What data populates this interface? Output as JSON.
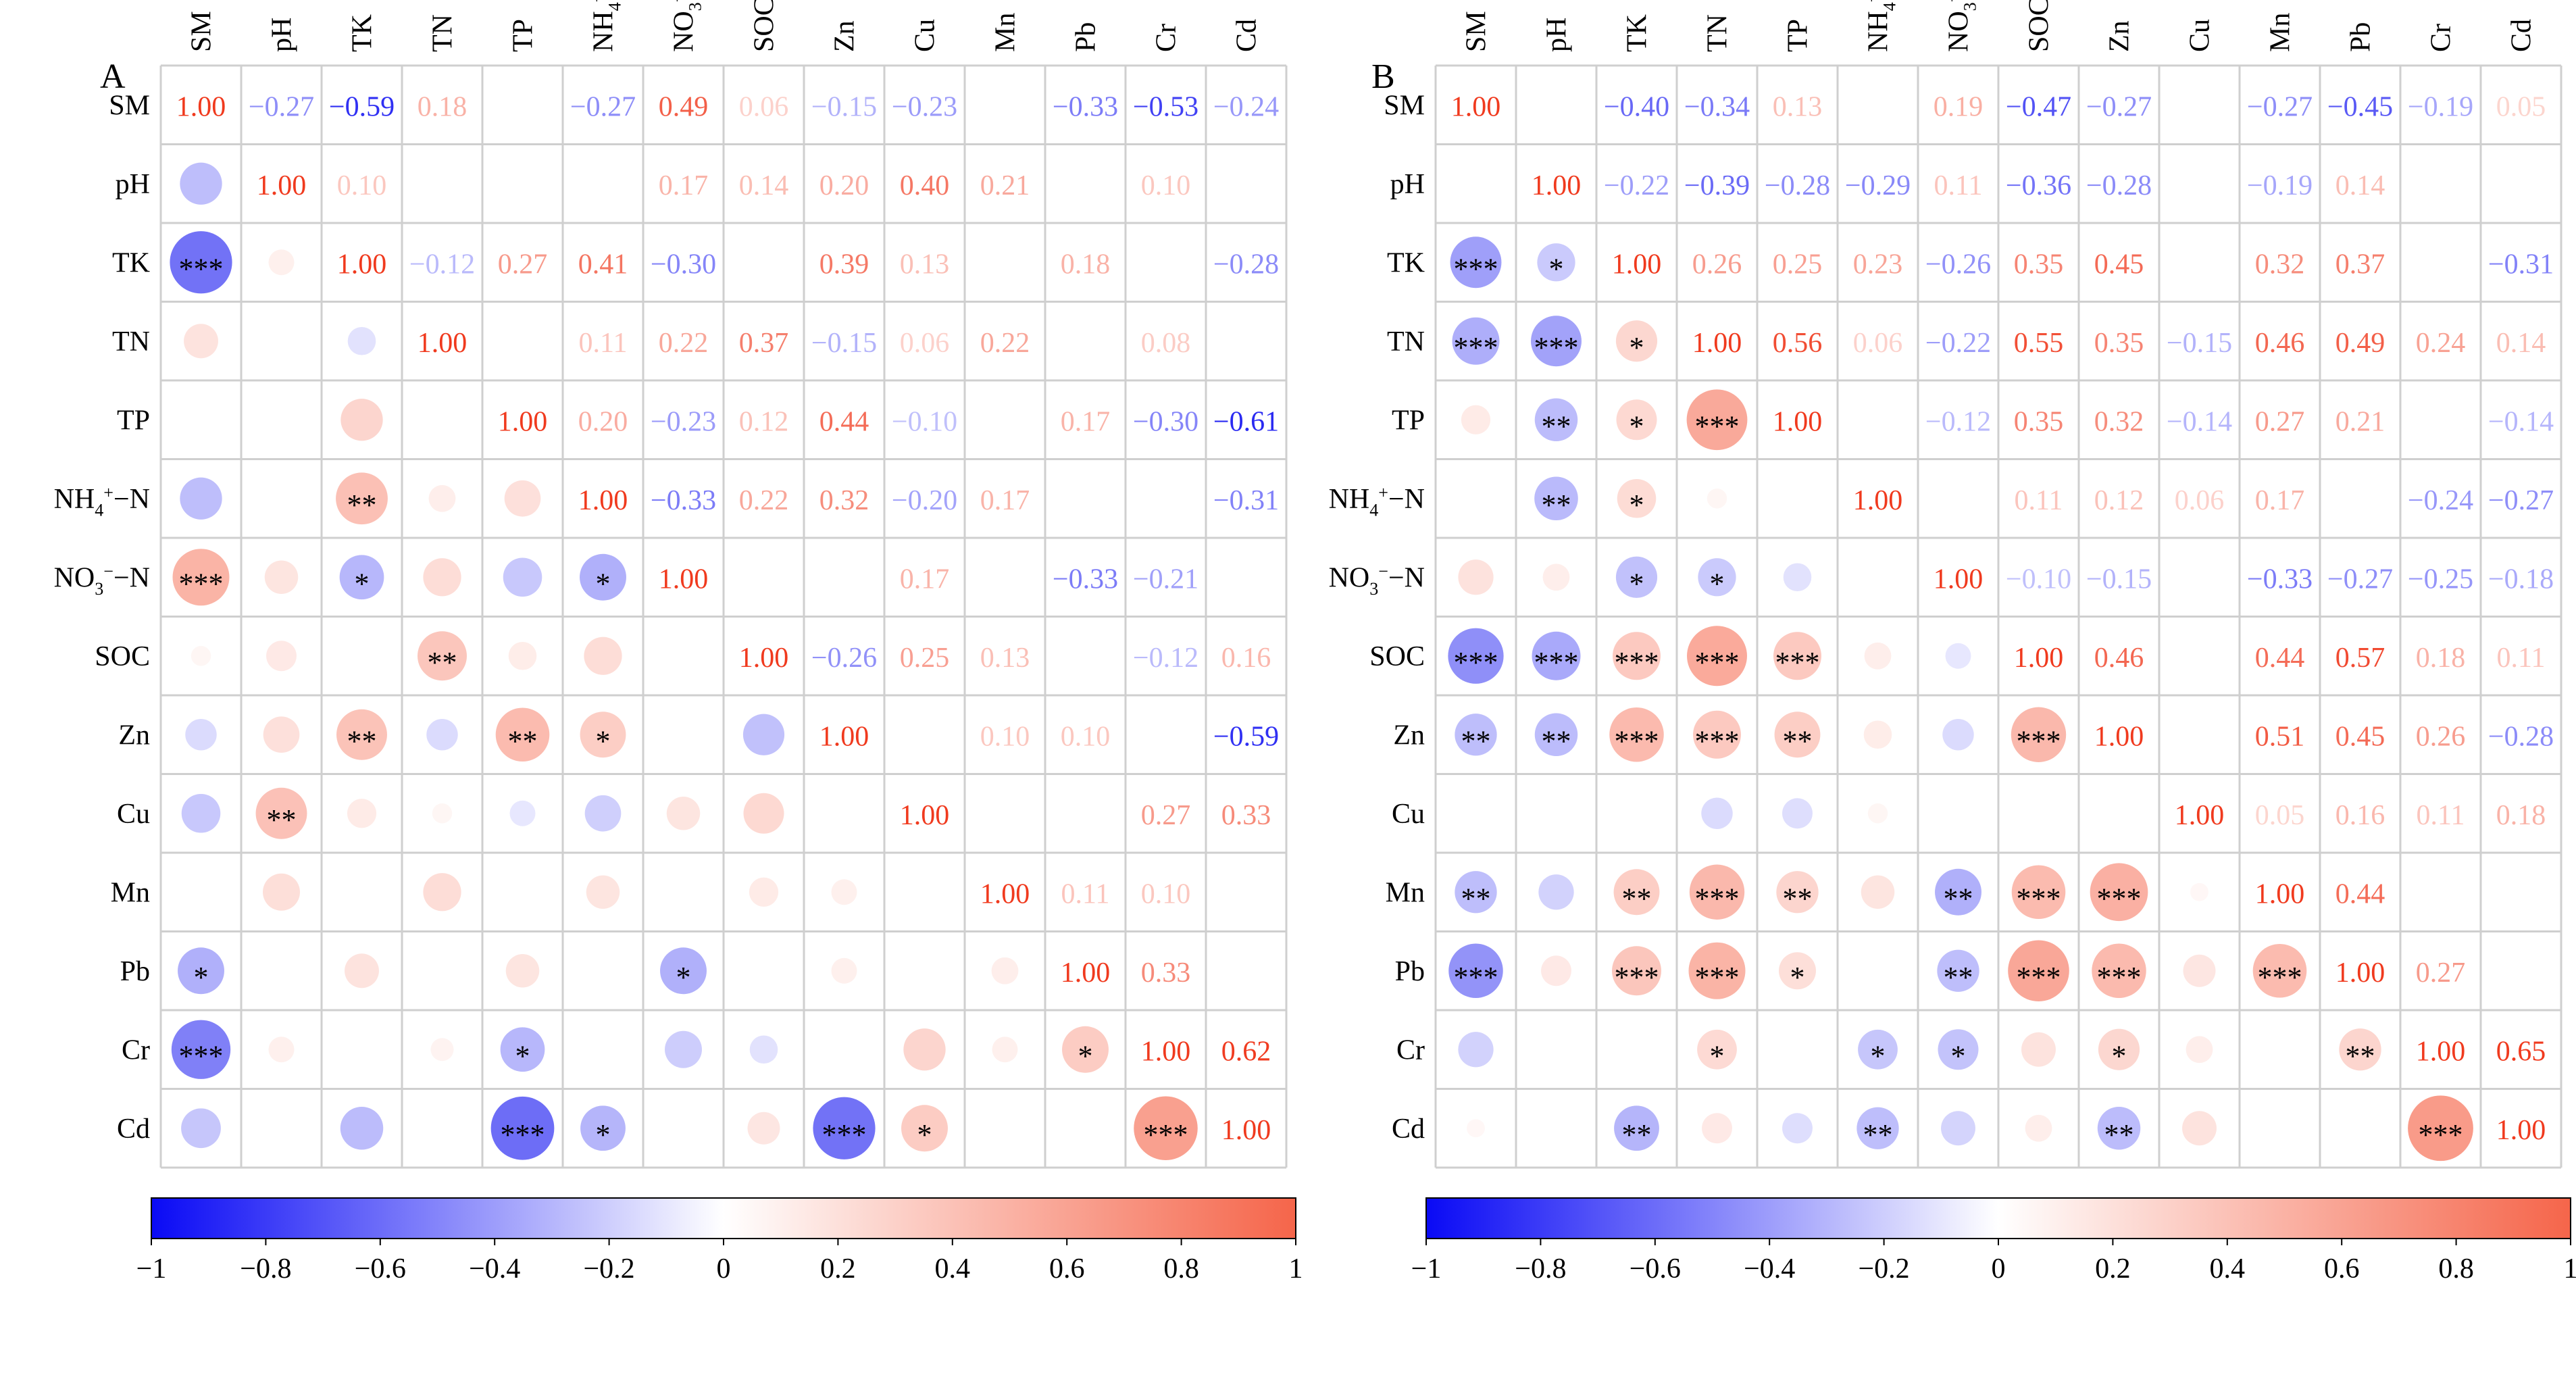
{
  "chart_data": [
    {
      "panel_label": "A",
      "type": "heatmap",
      "subtype": "correlation-matrix (upper: coefficients, lower: circles with significance stars)",
      "variables": [
        "SM",
        "pH",
        "TK",
        "TN",
        "TP",
        "NH4+-N",
        "NO3−-N",
        "SOC",
        "Zn",
        "Cu",
        "Mn",
        "Pb",
        "Cr",
        "Cd"
      ],
      "upper_values": [
        [
          1.0,
          -0.27,
          -0.59,
          0.18,
          null,
          -0.27,
          0.49,
          0.06,
          -0.15,
          -0.23,
          null,
          -0.33,
          -0.53,
          -0.24
        ],
        [
          null,
          1.0,
          0.1,
          null,
          null,
          null,
          0.17,
          0.14,
          0.2,
          0.4,
          0.21,
          null,
          0.1,
          null
        ],
        [
          null,
          null,
          1.0,
          -0.12,
          0.27,
          0.41,
          -0.3,
          null,
          0.39,
          0.13,
          null,
          0.18,
          null,
          -0.28
        ],
        [
          null,
          null,
          null,
          1.0,
          null,
          0.11,
          0.22,
          0.37,
          -0.15,
          0.06,
          0.22,
          null,
          0.08,
          null
        ],
        [
          null,
          null,
          null,
          null,
          1.0,
          0.2,
          -0.23,
          0.12,
          0.44,
          -0.1,
          null,
          0.17,
          -0.3,
          -0.61
        ],
        [
          null,
          null,
          null,
          null,
          null,
          1.0,
          -0.33,
          0.22,
          0.32,
          -0.2,
          0.17,
          null,
          null,
          -0.31
        ],
        [
          null,
          null,
          null,
          null,
          null,
          null,
          1.0,
          null,
          null,
          0.17,
          null,
          -0.33,
          -0.21,
          null
        ],
        [
          null,
          null,
          null,
          null,
          null,
          null,
          null,
          1.0,
          -0.26,
          0.25,
          0.13,
          null,
          -0.12,
          0.16
        ],
        [
          null,
          null,
          null,
          null,
          null,
          null,
          null,
          null,
          1.0,
          null,
          0.1,
          0.1,
          null,
          -0.59
        ],
        [
          null,
          null,
          null,
          null,
          null,
          null,
          null,
          null,
          null,
          1.0,
          null,
          null,
          0.27,
          0.33
        ],
        [
          null,
          null,
          null,
          null,
          null,
          null,
          null,
          null,
          null,
          null,
          1.0,
          0.11,
          0.1,
          null
        ],
        [
          null,
          null,
          null,
          null,
          null,
          null,
          null,
          null,
          null,
          null,
          null,
          1.0,
          0.33,
          null
        ],
        [
          null,
          null,
          null,
          null,
          null,
          null,
          null,
          null,
          null,
          null,
          null,
          null,
          1.0,
          0.62
        ],
        [
          null,
          null,
          null,
          null,
          null,
          null,
          null,
          null,
          null,
          null,
          null,
          null,
          null,
          1.0
        ]
      ],
      "lower_stars": [
        [
          "",
          "",
          "",
          "",
          "",
          "",
          "",
          "",
          "",
          "",
          "",
          "",
          "",
          ""
        ],
        [
          "",
          "",
          "",
          "",
          "",
          "",
          "",
          "",
          "",
          "",
          "",
          "",
          "",
          ""
        ],
        [
          "***",
          "",
          "",
          "",
          "",
          "",
          "",
          "",
          "",
          "",
          "",
          "",
          "",
          ""
        ],
        [
          "",
          "",
          "",
          "",
          "",
          "",
          "",
          "",
          "",
          "",
          "",
          "",
          "",
          ""
        ],
        [
          "",
          "",
          "",
          "",
          "",
          "",
          "",
          "",
          "",
          "",
          "",
          "",
          "",
          ""
        ],
        [
          "",
          "",
          "**",
          "",
          "",
          "",
          "",
          "",
          "",
          "",
          "",
          "",
          "",
          ""
        ],
        [
          "***",
          "",
          "*",
          "",
          "",
          "*",
          "",
          "",
          "",
          "",
          "",
          "",
          "",
          ""
        ],
        [
          "",
          "",
          "",
          "**",
          "",
          "",
          "",
          "",
          "",
          "",
          "",
          "",
          "",
          ""
        ],
        [
          "",
          "",
          "**",
          "",
          "**",
          "*",
          "",
          "",
          "",
          "",
          "",
          "",
          "",
          ""
        ],
        [
          "",
          "**",
          "",
          "",
          "",
          "",
          "",
          "",
          "",
          "",
          "",
          "",
          "",
          ""
        ],
        [
          "",
          "",
          "",
          "",
          "",
          "",
          "",
          "",
          "",
          "",
          "",
          "",
          "",
          ""
        ],
        [
          "*",
          "",
          "",
          "",
          "",
          "",
          "*",
          "",
          "",
          "",
          "",
          "",
          "",
          ""
        ],
        [
          "***",
          "",
          "",
          "",
          "*",
          "",
          "",
          "",
          "",
          "",
          "",
          "*",
          "",
          ""
        ],
        [
          "",
          "",
          "",
          "",
          "***",
          "*",
          "",
          "",
          "***",
          "*",
          "",
          "",
          "***",
          ""
        ]
      ],
      "colorbar": {
        "min": -1,
        "max": 1,
        "ticks": [
          "−1",
          "−0.8",
          "−0.6",
          "−0.4",
          "−0.2",
          "0",
          "0.2",
          "0.4",
          "0.6",
          "0.8",
          "1"
        ],
        "negative_color": "#1010f0",
        "positive_color": "#f5654a"
      }
    },
    {
      "panel_label": "B",
      "type": "heatmap",
      "subtype": "correlation-matrix (upper: coefficients, lower: circles with significance stars)",
      "variables": [
        "SM",
        "pH",
        "TK",
        "TN",
        "TP",
        "NH4+-N",
        "NO3−-N",
        "SOC",
        "Zn",
        "Cu",
        "Mn",
        "Pb",
        "Cr",
        "Cd"
      ],
      "upper_values": [
        [
          1.0,
          null,
          -0.4,
          -0.34,
          0.13,
          null,
          0.19,
          -0.47,
          -0.27,
          null,
          -0.27,
          -0.45,
          -0.19,
          0.05
        ],
        [
          null,
          1.0,
          -0.22,
          -0.39,
          -0.28,
          -0.29,
          0.11,
          -0.36,
          -0.28,
          null,
          -0.19,
          0.14,
          null,
          null
        ],
        [
          null,
          null,
          1.0,
          0.26,
          0.25,
          0.23,
          -0.26,
          0.35,
          0.45,
          null,
          0.32,
          0.37,
          null,
          -0.31
        ],
        [
          null,
          null,
          null,
          1.0,
          0.56,
          0.06,
          -0.22,
          0.55,
          0.35,
          -0.15,
          0.46,
          0.49,
          0.24,
          0.14
        ],
        [
          null,
          null,
          null,
          null,
          1.0,
          null,
          -0.12,
          0.35,
          0.32,
          -0.14,
          0.27,
          0.21,
          null,
          -0.14
        ],
        [
          null,
          null,
          null,
          null,
          null,
          1.0,
          null,
          0.11,
          0.12,
          0.06,
          0.17,
          null,
          -0.24,
          -0.27
        ],
        [
          null,
          null,
          null,
          null,
          null,
          null,
          1.0,
          -0.1,
          -0.15,
          null,
          -0.33,
          -0.27,
          -0.25,
          -0.18
        ],
        [
          null,
          null,
          null,
          null,
          null,
          null,
          null,
          1.0,
          0.46,
          null,
          0.44,
          0.57,
          0.18,
          0.11
        ],
        [
          null,
          null,
          null,
          null,
          null,
          null,
          null,
          null,
          1.0,
          null,
          0.51,
          0.45,
          0.26,
          -0.28
        ],
        [
          null,
          null,
          null,
          null,
          null,
          null,
          null,
          null,
          null,
          1.0,
          0.05,
          0.16,
          0.11,
          0.18
        ],
        [
          null,
          null,
          null,
          null,
          null,
          null,
          null,
          null,
          null,
          null,
          1.0,
          0.44,
          null,
          null
        ],
        [
          null,
          null,
          null,
          null,
          null,
          null,
          null,
          null,
          null,
          null,
          null,
          1.0,
          0.27,
          null
        ],
        [
          null,
          null,
          null,
          null,
          null,
          null,
          null,
          null,
          null,
          null,
          null,
          null,
          1.0,
          0.65
        ],
        [
          null,
          null,
          null,
          null,
          null,
          null,
          null,
          null,
          null,
          null,
          null,
          null,
          null,
          1.0
        ]
      ],
      "lower_stars": [
        [
          "",
          "",
          "",
          "",
          "",
          "",
          "",
          "",
          "",
          "",
          "",
          "",
          "",
          ""
        ],
        [
          "",
          "",
          "",
          "",
          "",
          "",
          "",
          "",
          "",
          "",
          "",
          "",
          "",
          ""
        ],
        [
          "***",
          "*",
          "",
          "",
          "",
          "",
          "",
          "",
          "",
          "",
          "",
          "",
          "",
          ""
        ],
        [
          "***",
          "***",
          "*",
          "",
          "",
          "",
          "",
          "",
          "",
          "",
          "",
          "",
          "",
          ""
        ],
        [
          "",
          "**",
          "*",
          "***",
          "",
          "",
          "",
          "",
          "",
          "",
          "",
          "",
          "",
          ""
        ],
        [
          "",
          "**",
          "*",
          "",
          "",
          "",
          "",
          "",
          "",
          "",
          "",
          "",
          "",
          ""
        ],
        [
          "",
          "",
          "*",
          "*",
          "",
          "",
          "",
          "",
          "",
          "",
          "",
          "",
          "",
          ""
        ],
        [
          "***",
          "***",
          "***",
          "***",
          "***",
          "",
          "",
          "",
          "",
          "",
          "",
          "",
          "",
          ""
        ],
        [
          "**",
          "**",
          "***",
          "***",
          "**",
          "",
          "",
          "***",
          "",
          "",
          "",
          "",
          "",
          ""
        ],
        [
          "",
          "",
          "",
          "",
          "",
          "",
          "",
          "",
          "",
          "",
          "",
          "",
          "",
          ""
        ],
        [
          "**",
          "",
          "**",
          "***",
          "**",
          "",
          "**",
          "***",
          "***",
          "",
          "",
          "",
          "",
          ""
        ],
        [
          "***",
          "",
          "***",
          "***",
          "*",
          "",
          "**",
          "***",
          "***",
          "",
          "***",
          "",
          "",
          ""
        ],
        [
          "",
          "",
          "",
          "*",
          "",
          "*",
          "*",
          "",
          "*",
          "",
          "",
          "**",
          "",
          ""
        ],
        [
          "",
          "",
          "**",
          "",
          "",
          "**",
          "",
          "",
          "**",
          "",
          "",
          "",
          "***",
          ""
        ]
      ],
      "colorbar": {
        "min": -1,
        "max": 1,
        "ticks": [
          "−1",
          "−0.8",
          "−0.6",
          "−0.4",
          "−0.2",
          "0",
          "0.2",
          "0.4",
          "0.6",
          "0.8",
          "1"
        ],
        "negative_color": "#1010f0",
        "positive_color": "#f5654a"
      }
    }
  ]
}
